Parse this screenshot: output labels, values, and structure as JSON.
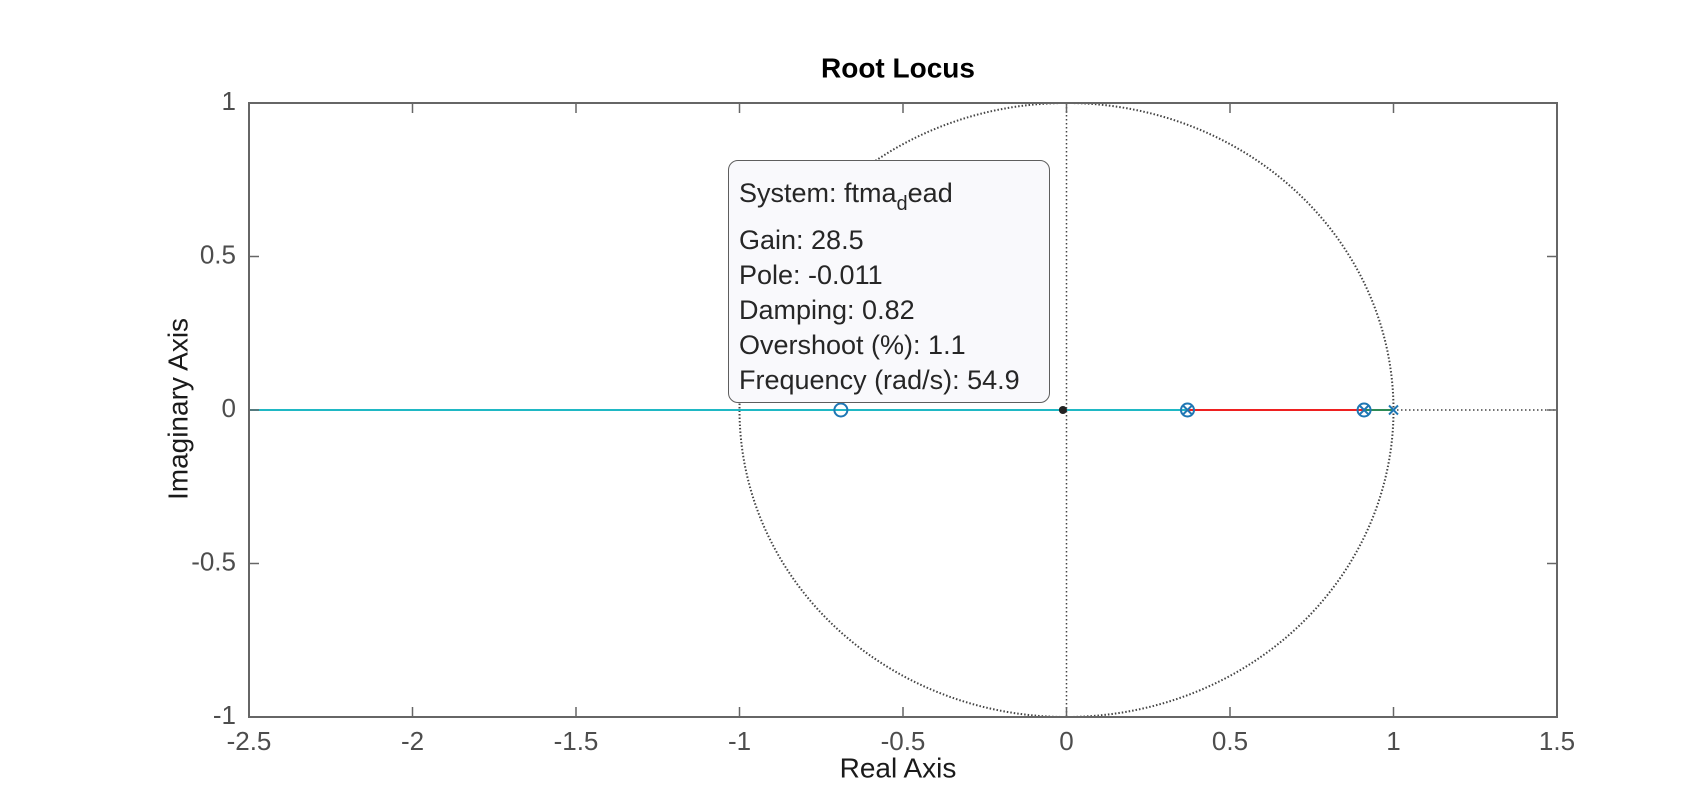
{
  "chart_data": {
    "type": "scatter",
    "title": "Root Locus",
    "xlabel": "Real Axis",
    "ylabel": "Imaginary Axis",
    "xlim": [
      -2.5,
      1.5
    ],
    "ylim": [
      -1,
      1
    ],
    "x_ticks": [
      "-2.5",
      "-2",
      "-1.5",
      "-1",
      "-0.5",
      "0",
      "0.5",
      "1",
      "1.5"
    ],
    "y_ticks": [
      "1",
      "0.5",
      "0",
      "-0.5",
      "-1"
    ],
    "unit_circle": true,
    "branches": [
      {
        "color": "#1fb8c4",
        "points": [
          [
            -2.5,
            0
          ],
          [
            0.37,
            0
          ]
        ]
      },
      {
        "color": "#ee2020",
        "points": [
          [
            0.37,
            0
          ],
          [
            0.91,
            0
          ]
        ]
      },
      {
        "color": "#2e8b57",
        "points": [
          [
            0.91,
            0
          ],
          [
            1.0,
            0
          ]
        ]
      }
    ],
    "poles": [
      [
        0.37,
        0
      ],
      [
        0.91,
        0
      ],
      [
        1.0,
        0
      ]
    ],
    "zeros": [
      [
        -0.69,
        0
      ],
      [
        0.37,
        0
      ],
      [
        0.91,
        0
      ]
    ],
    "selected_point": [
      -0.011,
      0
    ],
    "datatip": {
      "system_prefix": "System: ftma",
      "system_sub": "d",
      "system_suffix": "ead",
      "gain": "Gain: 28.5",
      "pole": "Pole: -0.011",
      "damping": "Damping: 0.82",
      "overshoot": "Overshoot (%): 1.1",
      "frequency": "Frequency (rad/s): 54.9"
    },
    "colors": {
      "axes": "#666666",
      "marker": "#1f77b4",
      "grid": "#444444"
    }
  }
}
